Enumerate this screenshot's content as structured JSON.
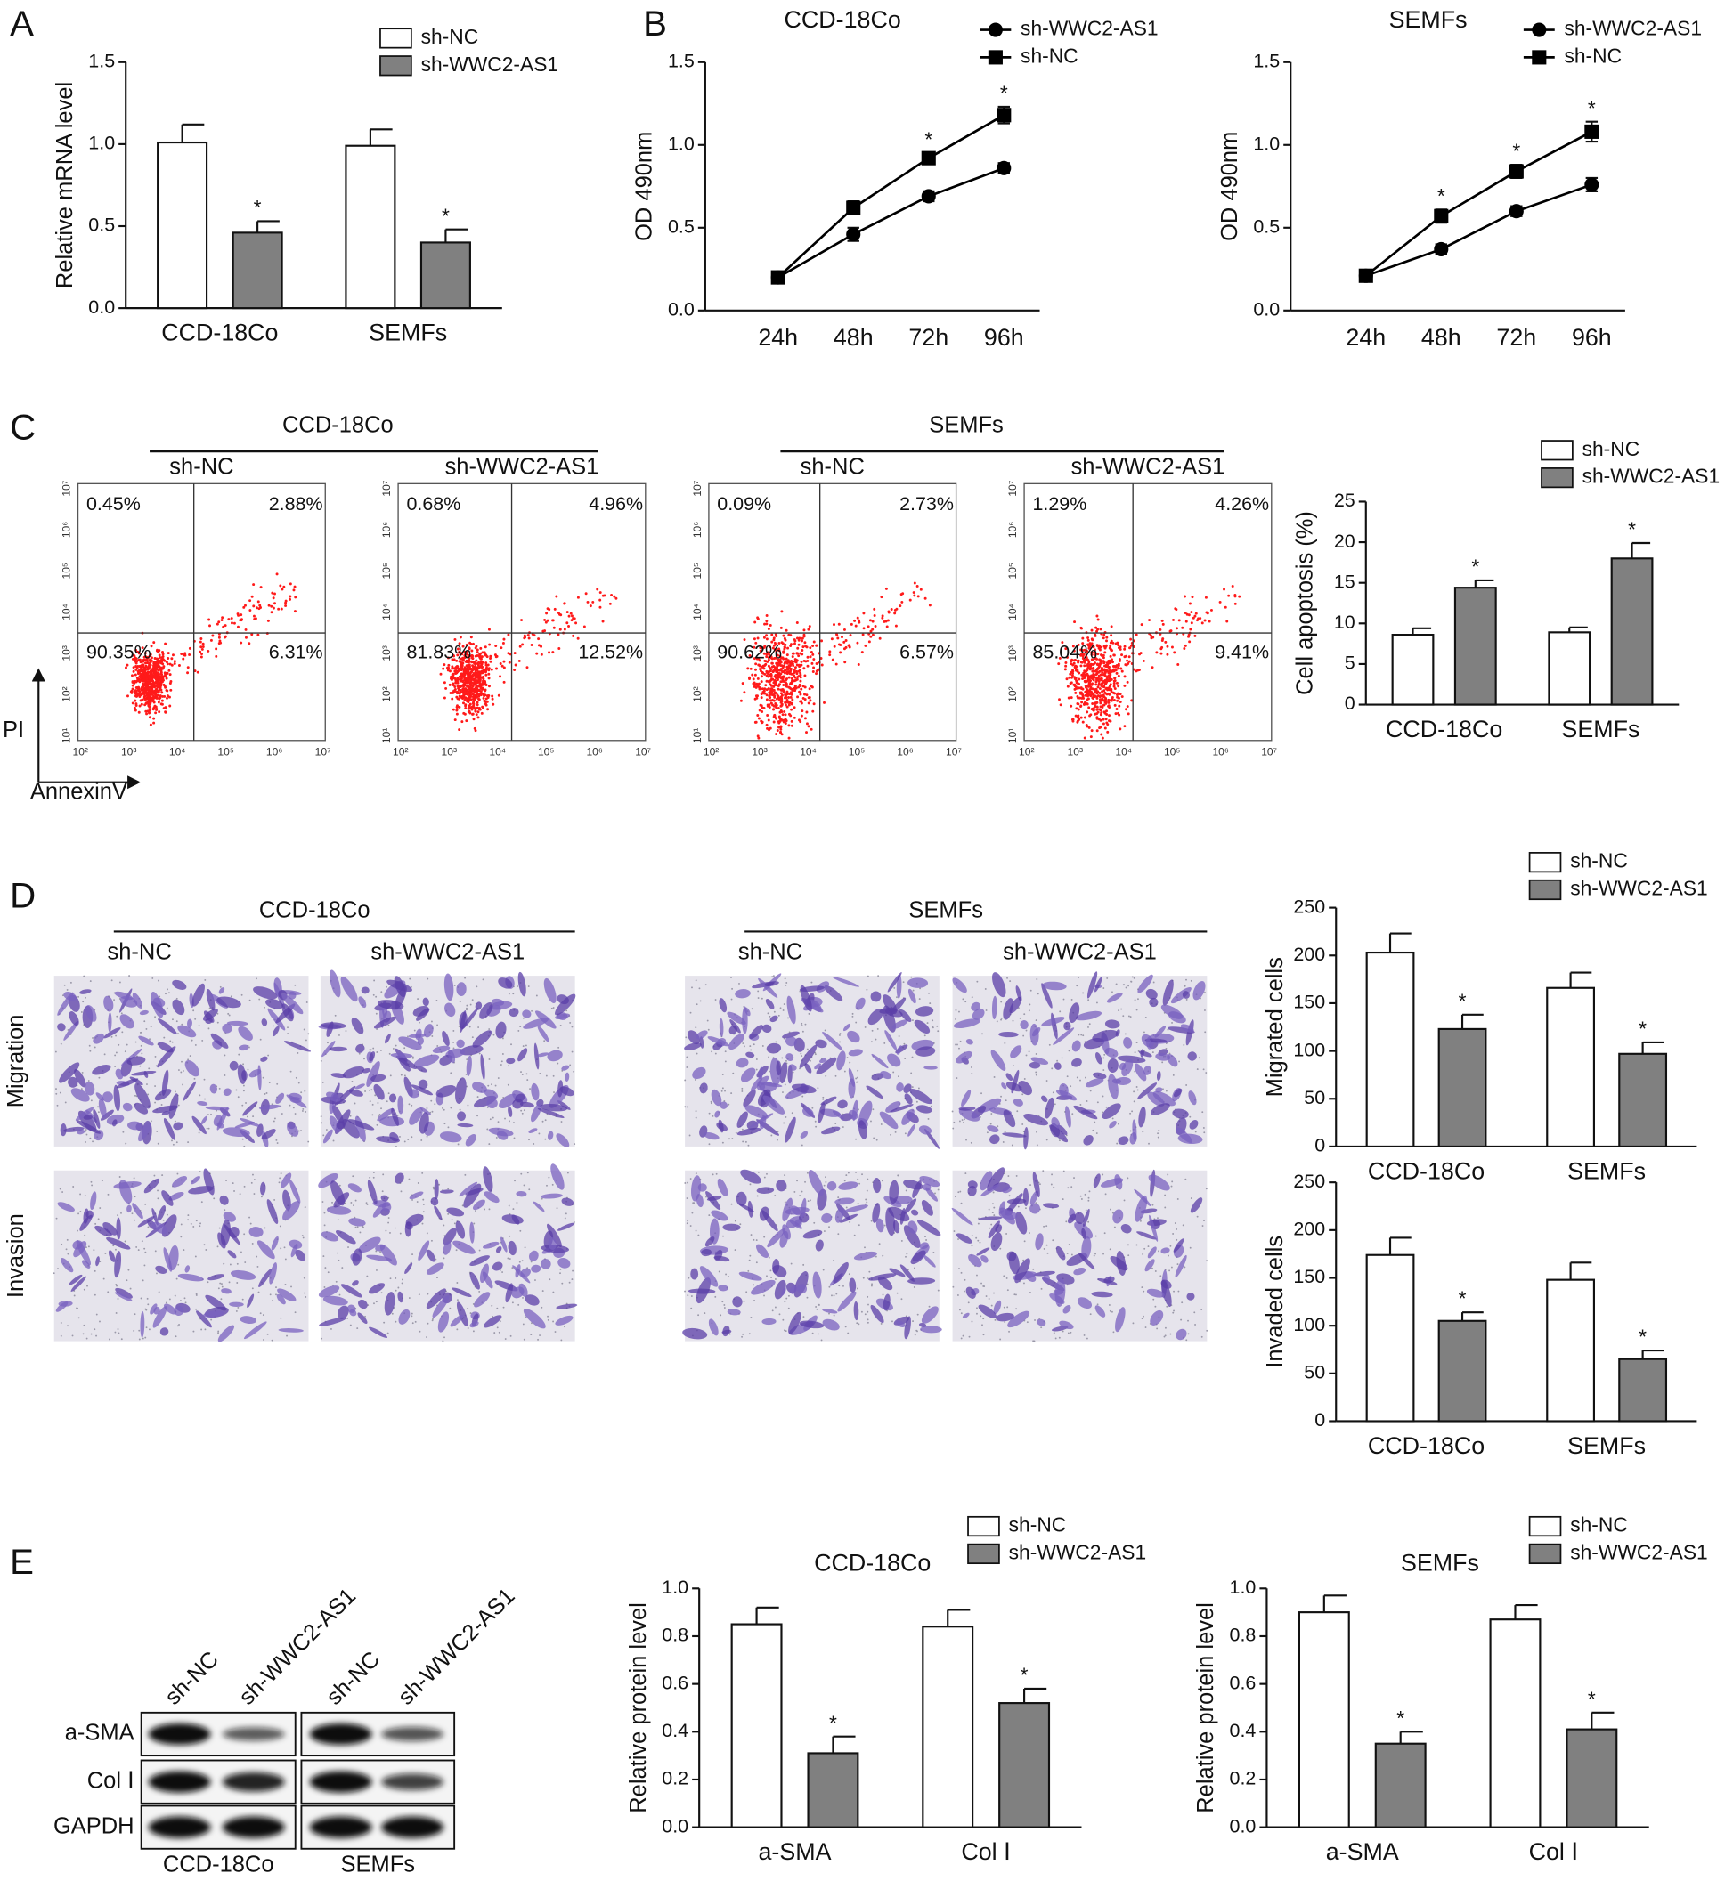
{
  "panel_labels": [
    "A",
    "B",
    "C",
    "D",
    "E"
  ],
  "chart_data": [
    {
      "type": "bar",
      "y_label": "Relative mRNA level",
      "categories": [
        "CCD-18Co",
        "SEMFs"
      ],
      "series": [
        {
          "name": "sh-NC",
          "color": "#ffffff",
          "values": [
            1.01,
            0.99
          ],
          "errors": [
            0.11,
            0.1
          ]
        },
        {
          "name": "sh-WWC2-AS1",
          "color": "#808080",
          "values": [
            0.46,
            0.4
          ],
          "errors": [
            0.07,
            0.08
          ],
          "significance": [
            "*",
            "*"
          ]
        }
      ],
      "ylim": [
        0,
        1.5
      ],
      "yticks": [
        {
          "value": 0,
          "label": "0.0"
        },
        0.5,
        {
          "value": 1,
          "label": "1.0"
        },
        1.5
      ]
    },
    {
      "type": "line",
      "title": "CCD-18Co",
      "y_label": "OD 490nm",
      "categories": [
        "24h",
        "48h",
        "72h",
        "96h"
      ],
      "series": [
        {
          "name": "sh-WWC2-AS1",
          "color": "#000000",
          "marker": "circle",
          "values": [
            0.2,
            0.46,
            0.69,
            0.86
          ],
          "errors": [
            0.02,
            0.04,
            0.03,
            0.03
          ]
        },
        {
          "name": "sh-NC",
          "color": "#000000",
          "marker": "square",
          "values": [
            0.2,
            0.62,
            0.92,
            1.18
          ],
          "errors": [
            0.02,
            0.04,
            0.03,
            0.05
          ],
          "significance": [
            null,
            null,
            "*",
            "*"
          ]
        }
      ],
      "ylim": [
        0,
        1.5
      ],
      "yticks": [
        {
          "value": 0,
          "label": "0.0"
        },
        0.5,
        {
          "value": 1,
          "label": "1.0"
        },
        1.5
      ]
    },
    {
      "type": "line",
      "title": "SEMFs",
      "y_label": "OD 490nm",
      "categories": [
        "24h",
        "48h",
        "72h",
        "96h"
      ],
      "series": [
        {
          "name": "sh-WWC2-AS1",
          "color": "#000000",
          "marker": "circle",
          "values": [
            0.21,
            0.37,
            0.6,
            0.76
          ],
          "errors": [
            0.02,
            0.03,
            0.03,
            0.04
          ]
        },
        {
          "name": "sh-NC",
          "color": "#000000",
          "marker": "square",
          "values": [
            0.21,
            0.57,
            0.84,
            1.08
          ],
          "errors": [
            0.02,
            0.04,
            0.04,
            0.06
          ],
          "significance": [
            null,
            "*",
            "*",
            "*"
          ]
        }
      ],
      "ylim": [
        0,
        1.5
      ],
      "yticks": [
        {
          "value": 0,
          "label": "0.0"
        },
        0.5,
        {
          "value": 1,
          "label": "1.0"
        },
        1.5
      ]
    },
    {
      "type": "bar",
      "y_label": "Cell apoptosis (%)",
      "categories": [
        "CCD-18Co",
        "SEMFs"
      ],
      "series": [
        {
          "name": "sh-NC",
          "color": "#ffffff",
          "values": [
            8.6,
            8.9
          ],
          "errors": [
            0.8,
            0.6
          ]
        },
        {
          "name": "sh-WWC2-AS1",
          "color": "#808080",
          "values": [
            14.4,
            18.0
          ],
          "errors": [
            0.9,
            1.9
          ],
          "significance": [
            "*",
            "*"
          ]
        }
      ],
      "ylim": [
        0,
        25
      ],
      "yticks": [
        0,
        5,
        10,
        15,
        20,
        25
      ]
    },
    {
      "type": "bar",
      "y_label": "Migrated cells",
      "categories": [
        "CCD-18Co",
        "SEMFs"
      ],
      "series": [
        {
          "name": "sh-NC",
          "color": "#ffffff",
          "values": [
            203,
            166
          ],
          "errors": [
            20,
            16
          ]
        },
        {
          "name": "sh-WWC2-AS1",
          "color": "#808080",
          "values": [
            123,
            97
          ],
          "errors": [
            15,
            12
          ],
          "significance": [
            "*",
            "*"
          ]
        }
      ],
      "ylim": [
        0,
        250
      ],
      "yticks": [
        0,
        50,
        100,
        150,
        200,
        250
      ]
    },
    {
      "type": "bar",
      "y_label": "Invaded cells",
      "categories": [
        "CCD-18Co",
        "SEMFs"
      ],
      "series": [
        {
          "color": "#ffffff",
          "values": [
            174,
            148
          ],
          "errors": [
            18,
            18
          ]
        },
        {
          "color": "#808080",
          "values": [
            105,
            65
          ],
          "errors": [
            9,
            9
          ],
          "significance": [
            "*",
            "*"
          ]
        }
      ],
      "ylim": [
        0,
        250
      ],
      "yticks": [
        0,
        50,
        100,
        150,
        200,
        250
      ]
    },
    {
      "type": "bar",
      "title": "CCD-18Co",
      "y_label": "Relative protein level",
      "categories": [
        "a-SMA",
        "Col Ⅰ"
      ],
      "series": [
        {
          "name": "sh-NC",
          "color": "#ffffff",
          "values": [
            0.85,
            0.84
          ],
          "errors": [
            0.07,
            0.07
          ]
        },
        {
          "name": "sh-WWC2-AS1",
          "color": "#808080",
          "values": [
            0.31,
            0.52
          ],
          "errors": [
            0.07,
            0.06
          ],
          "significance": [
            "*",
            "*"
          ]
        }
      ],
      "ylim": [
        0,
        1
      ],
      "yticks": [
        {
          "value": 0,
          "label": "0.0"
        },
        0.2,
        0.4,
        0.6,
        0.8,
        {
          "value": 1,
          "label": "1.0"
        }
      ]
    },
    {
      "type": "bar",
      "title": "SEMFs",
      "y_label": "Relative protein level",
      "categories": [
        "a-SMA",
        "Col Ⅰ"
      ],
      "series": [
        {
          "name": "sh-NC",
          "color": "#ffffff",
          "values": [
            0.9,
            0.87
          ],
          "errors": [
            0.07,
            0.06
          ]
        },
        {
          "name": "sh-WWC2-AS1",
          "color": "#808080",
          "values": [
            0.35,
            0.41
          ],
          "errors": [
            0.05,
            0.07
          ],
          "significance": [
            "*",
            "*"
          ]
        }
      ],
      "ylim": [
        0,
        1
      ],
      "yticks": [
        {
          "value": 0,
          "label": "0.0"
        },
        0.2,
        0.4,
        0.6,
        0.8,
        {
          "value": 1,
          "label": "1.0"
        }
      ]
    }
  ],
  "flow": {
    "x_label": "AnnexinV",
    "y_label": "PI",
    "x_ticks": [
      "10²",
      "10³",
      "10⁴",
      "10⁵",
      "10⁶",
      "10⁷"
    ],
    "y_ticks": [
      "10¹",
      "10²",
      "10³",
      "10⁴",
      "10⁵",
      "10⁶",
      "10⁷"
    ],
    "groups": [
      {
        "name": "CCD-18Co",
        "conditions": [
          {
            "name": "sh-NC",
            "quadrants": [
              "0.45%",
              "2.88%",
              "90.35%",
              "6.31%"
            ]
          },
          {
            "name": "sh-WWC2-AS1",
            "quadrants": [
              "0.68%",
              "4.96%",
              "81.83%",
              "12.52%"
            ]
          }
        ]
      },
      {
        "name": "SEMFs",
        "conditions": [
          {
            "name": "sh-NC",
            "quadrants": [
              "0.09%",
              "2.73%",
              "90.62%",
              "6.57%"
            ]
          },
          {
            "name": "sh-WWC2-AS1",
            "quadrants": [
              "1.29%",
              "4.26%",
              "85.04%",
              "9.41%"
            ]
          }
        ]
      }
    ]
  },
  "micrographs": {
    "rows": [
      "Migration",
      "Invasion"
    ],
    "groups": [
      {
        "name": "CCD-18Co",
        "conditions": [
          "sh-NC",
          "sh-WWC2-AS1"
        ]
      },
      {
        "name": "SEMFs",
        "conditions": [
          "sh-NC",
          "sh-WWC2-AS1"
        ]
      }
    ]
  },
  "blot": {
    "lanes": [
      "sh-NC",
      "sh-WWC2-AS1",
      "sh-NC",
      "sh-WWC2-AS1"
    ],
    "proteins": [
      "a-SMA",
      "Col Ⅰ",
      "GAPDH"
    ],
    "groups": [
      "CCD-18Co",
      "SEMFs"
    ]
  }
}
